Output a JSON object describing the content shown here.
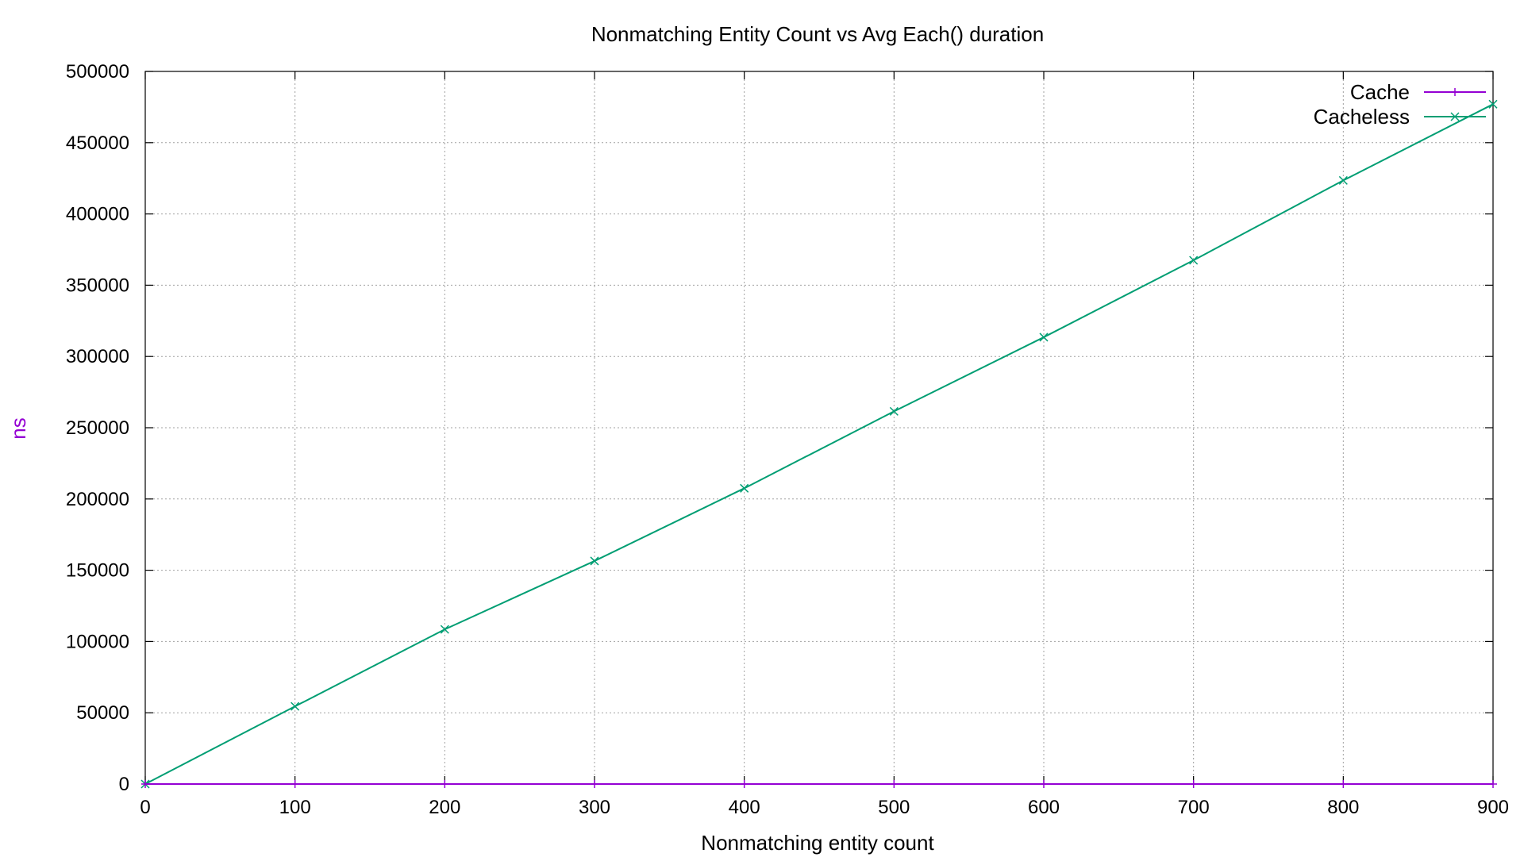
{
  "chart_data": {
    "type": "line",
    "title": "Nonmatching Entity Count vs Avg Each() duration",
    "xlabel": "Nonmatching entity count",
    "ylabel": "ns",
    "xlim": [
      0,
      900
    ],
    "ylim": [
      0,
      500000
    ],
    "x_ticks": [
      0,
      100,
      200,
      300,
      400,
      500,
      600,
      700,
      800,
      900
    ],
    "y_ticks": [
      0,
      50000,
      100000,
      150000,
      200000,
      250000,
      300000,
      350000,
      400000,
      450000,
      500000
    ],
    "grid": true,
    "legend_position": "top-right",
    "series": [
      {
        "name": "Cache",
        "color": "#9400d3",
        "marker": "plus",
        "x": [
          0,
          100,
          200,
          300,
          400,
          500,
          600,
          700,
          800,
          900
        ],
        "y": [
          0,
          0,
          0,
          0,
          0,
          0,
          0,
          0,
          0,
          0
        ]
      },
      {
        "name": "Cacheless",
        "color": "#009e73",
        "marker": "cross",
        "x": [
          0,
          100,
          200,
          300,
          400,
          500,
          600,
          700,
          800,
          900
        ],
        "y": [
          0,
          54500,
          108500,
          156500,
          207500,
          261500,
          313500,
          367500,
          423500,
          477000
        ]
      }
    ]
  }
}
